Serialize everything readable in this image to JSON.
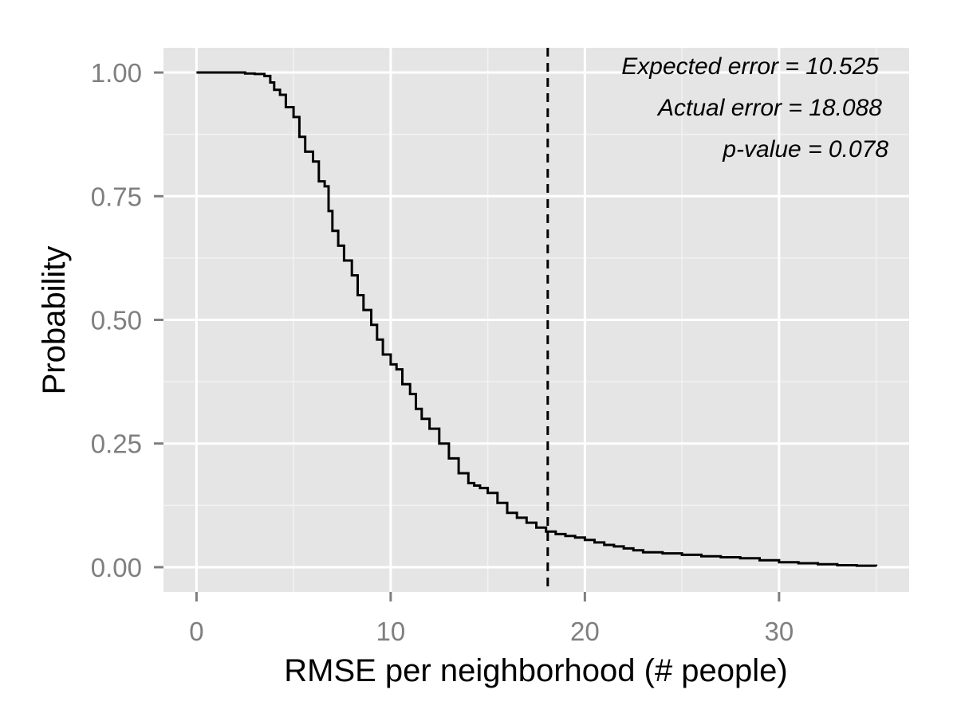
{
  "chart_data": {
    "type": "line",
    "step": true,
    "xlabel": "RMSE per neighborhood (# people)",
    "ylabel": "Probability",
    "xlim": [
      -1.7,
      36.7
    ],
    "ylim": [
      -0.05,
      1.05
    ],
    "x_ticks": [
      0,
      10,
      20,
      30
    ],
    "x_tick_labels": [
      "0",
      "10",
      "20",
      "30"
    ],
    "y_ticks": [
      0,
      0.25,
      0.5,
      0.75,
      1
    ],
    "y_tick_labels": [
      "0.00",
      "0.25",
      "0.50",
      "0.75",
      "1.00"
    ],
    "grid": true,
    "background": "#e5e5e5",
    "grid_color": "#ffffff",
    "line_color": "#000000",
    "series": [
      {
        "x": [
          0,
          2,
          2.5,
          3,
          3.5,
          3.8,
          4.0,
          4.3,
          4.6,
          5.0,
          5.3,
          5.6,
          6.0,
          6.3,
          6.6,
          6.8,
          7.0,
          7.3,
          7.6,
          8.0,
          8.3,
          8.6,
          9.0,
          9.3,
          9.6,
          10.0,
          10.3,
          10.6,
          11.0,
          11.3,
          11.6,
          12.0,
          12.5,
          13.0,
          13.5,
          14.0,
          14.3,
          14.6,
          15.0,
          15.5,
          16.0,
          16.5,
          17.0,
          17.5,
          18.0,
          18.5,
          19.0,
          19.5,
          20.0,
          20.5,
          21.0,
          21.5,
          22.0,
          22.5,
          23.0,
          24.0,
          25.0,
          26.0,
          27.0,
          28.0,
          29.0,
          30.0,
          31.0,
          32.0,
          33.0,
          34.0,
          35.0
        ],
        "y": [
          1.0,
          1.0,
          0.998,
          0.997,
          0.993,
          0.98,
          0.965,
          0.955,
          0.93,
          0.91,
          0.87,
          0.84,
          0.82,
          0.78,
          0.77,
          0.72,
          0.68,
          0.65,
          0.62,
          0.59,
          0.55,
          0.52,
          0.49,
          0.46,
          0.43,
          0.41,
          0.4,
          0.37,
          0.35,
          0.32,
          0.3,
          0.28,
          0.25,
          0.22,
          0.19,
          0.17,
          0.165,
          0.16,
          0.15,
          0.13,
          0.11,
          0.1,
          0.09,
          0.08,
          0.072,
          0.067,
          0.063,
          0.06,
          0.055,
          0.05,
          0.045,
          0.042,
          0.038,
          0.034,
          0.03,
          0.028,
          0.025,
          0.022,
          0.02,
          0.018,
          0.014,
          0.01,
          0.008,
          0.006,
          0.004,
          0.003,
          0.002
        ]
      }
    ],
    "reference_line": {
      "x": 18.088,
      "style": "dashed",
      "color": "#000000"
    },
    "annotations": [
      "Expected error = 10.525",
      "Actual error = 18.088",
      "p-value = 0.078"
    ]
  }
}
